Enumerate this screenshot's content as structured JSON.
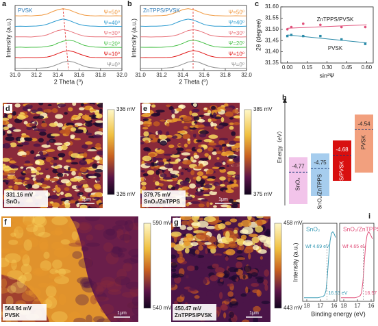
{
  "chart_data": [
    {
      "type": "line",
      "label": "a",
      "annotation": "PVSK",
      "xlabel": "2 Theta (⁰)",
      "ylabel": "Intensity (a.u.)",
      "xlim": [
        31.0,
        32.0
      ],
      "xticks": [
        {
          "value": 31.0,
          "label": "31.0"
        },
        31.2,
        31.4,
        31.6,
        31.8,
        {
          "value": 32.0,
          "label": "32.0"
        }
      ],
      "ylim": [
        -0.1,
        6.1
      ],
      "x": [
        31.0,
        31.05,
        31.1,
        31.15,
        31.2,
        31.25,
        31.3,
        31.35,
        31.4,
        31.45,
        31.5,
        31.55,
        31.6,
        31.65,
        31.7,
        31.75,
        31.8,
        31.85,
        31.9,
        31.95,
        32.0
      ],
      "series": [
        {
          "name": "Ψ=0⁰",
          "color": "#8a8a8a",
          "values": [
            0.11,
            0.11,
            0.12,
            0.11,
            0.11,
            0.14,
            0.18,
            0.3,
            0.5,
            0.7,
            0.8,
            0.7,
            0.5,
            0.3,
            0.18,
            0.14,
            0.11,
            0.12,
            0.11,
            0.1,
            0.11
          ]
        },
        {
          "name": "Ψ=10⁰",
          "color": "#e01818",
          "values": [
            1.12,
            1.1,
            1.12,
            1.13,
            1.11,
            1.15,
            1.19,
            1.31,
            1.52,
            1.71,
            1.8,
            1.69,
            1.49,
            1.31,
            1.17,
            1.14,
            1.12,
            1.11,
            1.1,
            1.11,
            1.12
          ]
        },
        {
          "name": "Ψ=20⁰",
          "color": "#4cc24c",
          "values": [
            2.11,
            2.13,
            2.1,
            2.12,
            2.12,
            2.14,
            2.2,
            2.29,
            2.51,
            2.7,
            2.79,
            2.72,
            2.5,
            2.29,
            2.19,
            2.13,
            2.12,
            2.1,
            2.12,
            2.11,
            2.1
          ]
        },
        {
          "name": "Ψ=30⁰",
          "color": "#e8727a",
          "values": [
            3.12,
            3.11,
            3.12,
            3.1,
            3.15,
            3.19,
            3.3,
            3.51,
            3.71,
            3.8,
            3.7,
            3.5,
            3.31,
            3.18,
            3.13,
            3.12,
            3.11,
            3.11,
            3.1,
            3.12,
            3.11
          ]
        },
        {
          "name": "Ψ=40⁰",
          "color": "#2a9ad0",
          "values": [
            4.11,
            4.12,
            4.11,
            4.13,
            4.14,
            4.19,
            4.31,
            4.5,
            4.69,
            4.81,
            4.7,
            4.49,
            4.3,
            4.19,
            4.14,
            4.12,
            4.1,
            4.11,
            4.12,
            4.11,
            4.1
          ]
        },
        {
          "name": "Ψ=50⁰",
          "color": "#f0963a",
          "values": [
            5.12,
            5.11,
            5.13,
            5.11,
            5.15,
            5.18,
            5.29,
            5.51,
            5.7,
            5.79,
            5.71,
            5.5,
            5.31,
            5.18,
            5.13,
            5.11,
            5.12,
            5.1,
            5.11,
            5.12,
            5.11
          ]
        }
      ]
    },
    {
      "type": "line",
      "label": "b",
      "annotation": "ZnTPPS/PVSK",
      "xlabel": "2 Theta (⁰)",
      "ylabel": "Intensity (a.u.)",
      "xlim": [
        31.0,
        32.0
      ],
      "xticks": [
        {
          "value": 31.0,
          "label": "31.0"
        },
        31.2,
        31.4,
        31.6,
        31.8,
        {
          "value": 32.0,
          "label": "32.0"
        }
      ],
      "ylim": [
        -0.1,
        6.1
      ],
      "x": [
        31.0,
        31.05,
        31.1,
        31.15,
        31.2,
        31.25,
        31.3,
        31.35,
        31.4,
        31.45,
        31.5,
        31.55,
        31.6,
        31.65,
        31.7,
        31.75,
        31.8,
        31.85,
        31.9,
        31.95,
        32.0
      ],
      "series": [
        {
          "name": "Ψ=0⁰",
          "color": "#8a8a8a",
          "values": [
            0.12,
            0.11,
            0.11,
            0.12,
            0.12,
            0.15,
            0.19,
            0.31,
            0.51,
            0.71,
            0.79,
            0.69,
            0.49,
            0.29,
            0.18,
            0.13,
            0.12,
            0.11,
            0.12,
            0.11,
            0.1
          ]
        },
        {
          "name": "Ψ=10⁰",
          "color": "#e01818",
          "values": [
            1.11,
            1.12,
            1.11,
            1.12,
            1.13,
            1.14,
            1.18,
            1.3,
            1.5,
            1.69,
            1.81,
            1.71,
            1.51,
            1.3,
            1.19,
            1.13,
            1.11,
            1.12,
            1.11,
            1.12,
            1.11
          ]
        },
        {
          "name": "Ψ=20⁰",
          "color": "#4cc24c",
          "values": [
            2.12,
            2.11,
            2.12,
            2.11,
            2.12,
            2.15,
            2.19,
            2.31,
            2.49,
            2.71,
            2.8,
            2.7,
            2.51,
            2.31,
            2.18,
            2.14,
            2.11,
            2.12,
            2.1,
            2.11,
            2.12
          ]
        },
        {
          "name": "Ψ=30⁰",
          "color": "#e8727a",
          "values": [
            3.11,
            3.12,
            3.1,
            3.12,
            3.11,
            3.14,
            3.19,
            3.3,
            3.5,
            3.71,
            3.8,
            3.69,
            3.5,
            3.29,
            3.19,
            3.13,
            3.12,
            3.11,
            3.12,
            3.1,
            3.11
          ]
        },
        {
          "name": "Ψ=40⁰",
          "color": "#2a9ad0",
          "values": [
            4.12,
            4.11,
            4.12,
            4.12,
            4.15,
            4.19,
            4.29,
            4.51,
            4.7,
            4.8,
            4.71,
            4.5,
            4.29,
            4.18,
            4.13,
            4.12,
            4.11,
            4.12,
            4.1,
            4.11,
            4.12
          ]
        },
        {
          "name": "Ψ=50⁰",
          "color": "#f0963a",
          "values": [
            5.11,
            5.12,
            5.11,
            5.12,
            5.14,
            5.18,
            5.31,
            5.5,
            5.71,
            5.8,
            5.7,
            5.51,
            5.3,
            5.19,
            5.14,
            5.12,
            5.11,
            5.1,
            5.12,
            5.11,
            5.1
          ]
        }
      ]
    },
    {
      "type": "scatter",
      "label": "c",
      "xlabel": "sin²Ψ",
      "ylabel": "2θ (degree)",
      "xlim": [
        -0.05,
        0.65
      ],
      "xticks": [
        {
          "value": 0.0,
          "label": "0.00"
        },
        0.15,
        {
          "value": 0.3,
          "label": "0.30"
        },
        0.45,
        {
          "value": 0.6,
          "label": "0.60"
        }
      ],
      "ylim": [
        31.35,
        31.6
      ],
      "yticks": [
        31.35,
        {
          "value": 31.4,
          "label": "31.40"
        },
        31.45,
        {
          "value": 31.5,
          "label": "31.50"
        },
        31.55,
        {
          "value": 31.6,
          "label": "31.60"
        }
      ],
      "x": [
        0.0,
        0.03,
        0.12,
        0.25,
        0.41,
        0.59
      ],
      "fit_x": [
        0.0,
        0.6
      ],
      "series": [
        {
          "name": "ZnTPPS/PVSK",
          "color": "#e0507a",
          "values": [
            31.5,
            31.51,
            31.525,
            31.52,
            31.51,
            31.51
          ],
          "fit": [
            31.505,
            31.52
          ]
        },
        {
          "name": "PVSK",
          "color": "#2a8aa8",
          "values": [
            31.47,
            31.475,
            31.47,
            31.47,
            31.455,
            31.435
          ],
          "fit": [
            31.475,
            31.44
          ]
        }
      ]
    },
    {
      "type": "energy",
      "label": "h",
      "ylabel": "Energy（eV）",
      "ylim": [
        -4.95,
        -4.45
      ],
      "categories": [
        "SnO₂",
        "SnO₂/ZnTPPS",
        "ZnTPPS/PVSK",
        "PVSK"
      ],
      "values": [
        -4.77,
        -4.75,
        -4.68,
        -4.54
      ],
      "colors": [
        "#f2c4ea",
        "#a6cdee",
        "#d80f0f",
        "#f2a07e"
      ]
    },
    {
      "type": "ups",
      "label": "i",
      "xlabel": "Binding energy (eV)",
      "ylabel": "Intensity (a.u.)",
      "xlim": [
        18.3,
        15.8
      ],
      "xticks": [
        18,
        17,
        16
      ],
      "ylim": [
        0,
        1.1
      ],
      "panels": [
        {
          "title": "SnO₂",
          "color": "#3a9bb5",
          "wf_label": "Wf 4.69 eV",
          "onset": 16.53,
          "onset_label": "16.53 eV",
          "x": [
            18.2,
            18.0,
            17.8,
            17.6,
            17.4,
            17.2,
            17.0,
            16.8,
            16.7,
            16.6,
            16.5,
            16.4,
            16.3,
            16.2,
            16.1,
            16.0,
            15.9
          ],
          "values": [
            0.05,
            0.05,
            0.05,
            0.05,
            0.05,
            0.05,
            0.06,
            0.07,
            0.09,
            0.15,
            0.35,
            0.62,
            0.85,
            0.96,
            0.98,
            0.95,
            0.9
          ]
        },
        {
          "title": "SnO₂/ZnTPPS",
          "color": "#e0507a",
          "wf_label": "Wf 4.65 eV",
          "onset": 16.57,
          "onset_label": "16.57 eV",
          "x": [
            18.2,
            18.0,
            17.8,
            17.6,
            17.4,
            17.2,
            17.0,
            16.8,
            16.7,
            16.6,
            16.5,
            16.4,
            16.3,
            16.2,
            16.1,
            16.0,
            15.9
          ],
          "values": [
            0.05,
            0.05,
            0.05,
            0.05,
            0.05,
            0.05,
            0.06,
            0.08,
            0.12,
            0.28,
            0.55,
            0.8,
            0.93,
            0.98,
            0.96,
            0.92,
            0.88
          ]
        }
      ]
    }
  ],
  "afm": [
    {
      "label": "d",
      "top": "336 mV",
      "bottom": "326 mV",
      "value": "331.16 mV",
      "sample": "SnO₂",
      "scalebar": "1μm"
    },
    {
      "label": "e",
      "top": "385 mV",
      "bottom": "375 mV",
      "value": "379.75 mV",
      "sample": "SnO₂/ZnTPPS",
      "scalebar": "1μm"
    },
    {
      "label": "f",
      "top": "590 mV",
      "bottom": "540 mV",
      "value": "564.94 mV",
      "sample": "PVSK",
      "scalebar": "1μm"
    },
    {
      "label": "g",
      "top": "458 mV",
      "bottom": "443 mV",
      "value": "450.47 mV",
      "sample": "ZnTPPS/PVSK",
      "scalebar": "1μm"
    }
  ]
}
